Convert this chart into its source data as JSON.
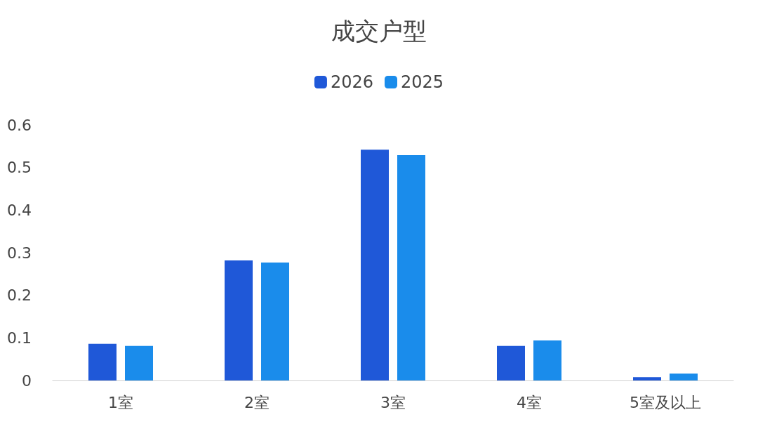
{
  "chart_data": {
    "type": "bar",
    "title": "成交户型",
    "categories": [
      "1室",
      "2室",
      "3室",
      "4室",
      "5室及以上"
    ],
    "series": [
      {
        "name": "2026",
        "color": "#1f58d8",
        "values": [
          0.086,
          0.282,
          0.542,
          0.081,
          0.008
        ]
      },
      {
        "name": "2025",
        "color": "#1a8ceb",
        "values": [
          0.081,
          0.277,
          0.529,
          0.094,
          0.016
        ]
      }
    ],
    "ylim": [
      0,
      0.6
    ],
    "yticks": [
      0,
      0.1,
      0.2,
      0.3,
      0.4,
      0.5,
      0.6
    ],
    "grid": false,
    "legend": "top"
  }
}
